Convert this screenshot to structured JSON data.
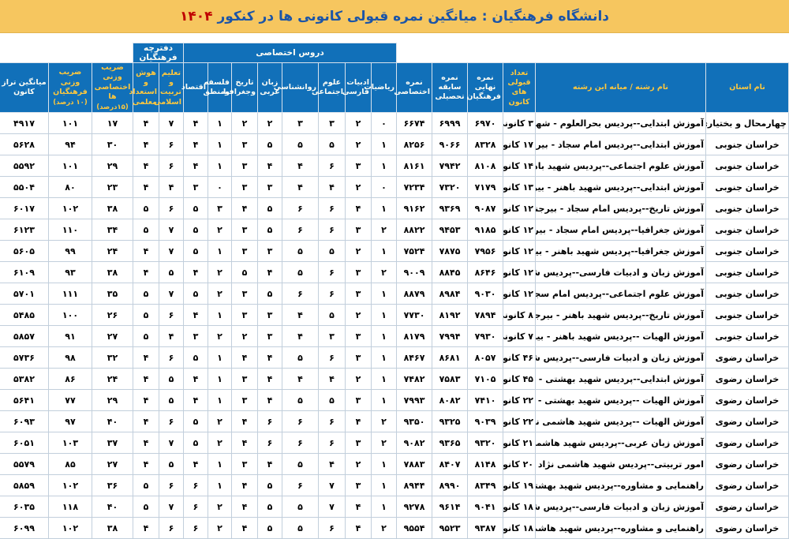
{
  "title": {
    "text": "دانشگاه فرهنگیان : میانگین نمره قبولی کانونی ها در کنکور",
    "year": "۱۴۰۴"
  },
  "colors": {
    "banner_yellow": "#f6c65f",
    "header_blue": "#1170b9",
    "accent_yellow": "#ffc83d",
    "title_blue": "#1b55a8",
    "year_red": "#c00000"
  },
  "header": {
    "groups": {
      "specialized_courses": "دروس اختصاصی",
      "farhangian_booklet": "دفترچه فرهنگیان"
    },
    "columns": {
      "province": "نام استان",
      "major": "نام رشته / میانه این رشته",
      "count": "تعداد قبولی های کانون",
      "final": "نمره نهایی فرهنگیان",
      "record": "نمره سابقه تحصیلی",
      "specialized": "نمره اختصاصی",
      "math": "ریاضیات",
      "literature": "ادبیات فارسی",
      "social": "علوم اجتماعی",
      "psychology": "روانشناسی",
      "arabic": "زبان عربی",
      "history": "تاریخ وجغرافیا",
      "philosophy": "فلسفه ومنطق",
      "economics": "اقتصاد",
      "education": "تعلیم و تربیت اسلامی",
      "aptitude": "هوش و استعداد معلمی",
      "coef_spec": "ضریب وزنی اختصاصی ها",
      "coef_spec_note": "(۱۵درصد)",
      "coef_farhangian": "ضریب وزنی فرهنگیان",
      "coef_farhangian_note": "(۱۰ درصد)",
      "taraz": "میانگین تراز کانون"
    }
  },
  "rows": [
    {
      "province": "چهارمحال و بختیاری",
      "major": "آموزش ابتدایی--پردیس بحرالعلوم - شهرکرد",
      "count": "۳ کانونی",
      "final": "۶۹۷۰",
      "record": "۶۹۹۹",
      "specialized": "۶۶۷۴",
      "math": "۰",
      "literature": "۲",
      "social": "۳",
      "psychology": "۳",
      "arabic": "۲",
      "history": "۲",
      "philosophy": "۱",
      "economics": "۴",
      "education": "۷",
      "aptitude": "۴",
      "coef_spec": "۱۷",
      "coef_farhangian": "۱۰۱",
      "taraz": "۴۹۱۷"
    },
    {
      "province": "خراسان جنوبی",
      "major": "آموزش ابتدایی--پردیس امام سجاد - بیرجند",
      "count": "۱۷ کانونی",
      "final": "۸۳۲۸",
      "record": "۹۰۶۶",
      "specialized": "۸۲۵۶",
      "math": "۱",
      "literature": "۲",
      "social": "۵",
      "psychology": "۵",
      "arabic": "۵",
      "history": "۳",
      "philosophy": "۱",
      "economics": "۴",
      "education": "۶",
      "aptitude": "۴",
      "coef_spec": "۳۰",
      "coef_farhangian": "۹۴",
      "taraz": "۵۶۲۸"
    },
    {
      "province": "خراسان جنوبی",
      "major": "آموزش علوم اجتماعی--پردیس شهید باهنر - بیرجند",
      "count": "۱۴ کانونی",
      "final": "۸۱۰۸",
      "record": "۷۹۴۲",
      "specialized": "۸۱۶۱",
      "math": "۱",
      "literature": "۳",
      "social": "۶",
      "psychology": "۴",
      "arabic": "۴",
      "history": "۳",
      "philosophy": "۱",
      "economics": "۴",
      "education": "۶",
      "aptitude": "۴",
      "coef_spec": "۲۹",
      "coef_farhangian": "۱۰۱",
      "taraz": "۵۵۹۲"
    },
    {
      "province": "خراسان جنوبی",
      "major": "آموزش ابتدایی--پردیس شهید باهنر - بیرجند",
      "count": "۱۳ کانونی",
      "final": "۷۱۷۹",
      "record": "۷۳۲۰",
      "specialized": "۷۲۳۴",
      "math": "۰",
      "literature": "۲",
      "social": "۴",
      "psychology": "۴",
      "arabic": "۳",
      "history": "۳",
      "philosophy": "۰",
      "economics": "۳",
      "education": "۴",
      "aptitude": "۴",
      "coef_spec": "۲۳",
      "coef_farhangian": "۸۰",
      "taraz": "۵۵۰۴"
    },
    {
      "province": "خراسان جنوبی",
      "major": "آموزش تاریخ--پردیس امام سجاد - بیرجند",
      "count": "۱۲ کانونی",
      "final": "۹۰۸۷",
      "record": "۹۳۶۹",
      "specialized": "۹۱۶۲",
      "math": "۱",
      "literature": "۴",
      "social": "۶",
      "psychology": "۶",
      "arabic": "۵",
      "history": "۴",
      "philosophy": "۳",
      "economics": "۵",
      "education": "۶",
      "aptitude": "۵",
      "coef_spec": "۳۸",
      "coef_farhangian": "۱۰۲",
      "taraz": "۶۰۱۷"
    },
    {
      "province": "خراسان جنوبی",
      "major": "آموزش جغرافیا--پردیس امام سجاد - بیرجند",
      "count": "۱۲ کانونی",
      "final": "۹۱۸۵",
      "record": "۹۴۵۳",
      "specialized": "۸۸۲۲",
      "math": "۲",
      "literature": "۳",
      "social": "۶",
      "psychology": "۶",
      "arabic": "۵",
      "history": "۳",
      "philosophy": "۲",
      "economics": "۵",
      "education": "۷",
      "aptitude": "۵",
      "coef_spec": "۳۴",
      "coef_farhangian": "۱۱۰",
      "taraz": "۶۱۲۳"
    },
    {
      "province": "خراسان جنوبی",
      "major": "آموزش جغرافیا--پردیس شهید باهنر - بیرجند",
      "count": "۱۲ کانونی",
      "final": "۷۹۵۶",
      "record": "۷۸۷۵",
      "specialized": "۷۵۲۴",
      "math": "۱",
      "literature": "۲",
      "social": "۵",
      "psychology": "۵",
      "arabic": "۳",
      "history": "۳",
      "philosophy": "۱",
      "economics": "۵",
      "education": "۷",
      "aptitude": "۴",
      "coef_spec": "۲۴",
      "coef_farhangian": "۹۹",
      "taraz": "۵۶۰۵"
    },
    {
      "province": "خراسان جنوبی",
      "major": "آموزش زبان و ادبیات فارسی--پردیس شهید باهنر - بیرجند",
      "count": "۱۲ کانونی",
      "final": "۸۶۴۶",
      "record": "۸۸۴۵",
      "specialized": "۹۰۰۹",
      "math": "۲",
      "literature": "۳",
      "social": "۶",
      "psychology": "۵",
      "arabic": "۴",
      "history": "۵",
      "philosophy": "۲",
      "economics": "۴",
      "education": "۵",
      "aptitude": "۴",
      "coef_spec": "۳۸",
      "coef_farhangian": "۹۳",
      "taraz": "۶۱۰۹"
    },
    {
      "province": "خراسان جنوبی",
      "major": "آموزش علوم اجتماعی--پردیس امام سجاد - بیرجند",
      "count": "۱۲ کانونی",
      "final": "۹۰۳۰",
      "record": "۸۹۸۴",
      "specialized": "۸۸۷۹",
      "math": "۱",
      "literature": "۳",
      "social": "۶",
      "psychology": "۶",
      "arabic": "۵",
      "history": "۳",
      "philosophy": "۲",
      "economics": "۵",
      "education": "۷",
      "aptitude": "۵",
      "coef_spec": "۳۵",
      "coef_farhangian": "۱۱۱",
      "taraz": "۵۷۰۱"
    },
    {
      "province": "خراسان جنوبی",
      "major": "آموزش تاریخ--پردیس شهید باهنر - بیرجند",
      "count": "۸ کانونی",
      "final": "۷۸۹۴",
      "record": "۸۱۹۲",
      "specialized": "۷۷۳۰",
      "math": "۱",
      "literature": "۲",
      "social": "۵",
      "psychology": "۴",
      "arabic": "۳",
      "history": "۳",
      "philosophy": "۱",
      "economics": "۴",
      "education": "۶",
      "aptitude": "۵",
      "coef_spec": "۲۶",
      "coef_farhangian": "۱۰۰",
      "taraz": "۵۴۸۵"
    },
    {
      "province": "خراسان جنوبی",
      "major": "آموزش الهیات --پردیس شهید باهنر - بیرجند",
      "count": "۷ کانونی",
      "final": "۷۹۳۰",
      "record": "۷۹۹۴",
      "specialized": "۸۱۷۹",
      "math": "۱",
      "literature": "۳",
      "social": "۳",
      "psychology": "۴",
      "arabic": "۳",
      "history": "۲",
      "philosophy": "۲",
      "economics": "۳",
      "education": "۴",
      "aptitude": "۵",
      "coef_spec": "۲۷",
      "coef_farhangian": "۹۱",
      "taraz": "۵۸۵۷"
    },
    {
      "province": "خراسان رضوی",
      "major": "آموزش زبان و ادبیات فارسی--پردیس شهید بهشتی - مشهد",
      "count": "۴۶ کانونی",
      "final": "۸۰۵۷",
      "record": "۸۶۸۱",
      "specialized": "۸۴۶۷",
      "math": "۱",
      "literature": "۳",
      "social": "۶",
      "psychology": "۵",
      "arabic": "۴",
      "history": "۴",
      "philosophy": "۱",
      "economics": "۵",
      "education": "۶",
      "aptitude": "۴",
      "coef_spec": "۳۲",
      "coef_farhangian": "۹۸",
      "taraz": "۵۷۳۶"
    },
    {
      "province": "خراسان رضوی",
      "major": "آموزش ابتدایی--پردیس شهید بهشتی - مشهد",
      "count": "۴۵ کانونی",
      "final": "۷۱۰۵",
      "record": "۷۵۸۳",
      "specialized": "۷۴۸۲",
      "math": "۱",
      "literature": "۲",
      "social": "۴",
      "psychology": "۴",
      "arabic": "۴",
      "history": "۳",
      "philosophy": "۱",
      "economics": "۴",
      "education": "۵",
      "aptitude": "۴",
      "coef_spec": "۲۴",
      "coef_farhangian": "۸۶",
      "taraz": "۵۳۸۲"
    },
    {
      "province": "خراسان رضوی",
      "major": "آموزش الهیات --پردیس شهید بهشتی - مشهد",
      "count": "۲۲ کانونی",
      "final": "۷۴۱۰",
      "record": "۸۰۸۲",
      "specialized": "۷۹۹۳",
      "math": "۱",
      "literature": "۳",
      "social": "۵",
      "psychology": "۵",
      "arabic": "۴",
      "history": "۳",
      "philosophy": "۱",
      "economics": "۴",
      "education": "۵",
      "aptitude": "۴",
      "coef_spec": "۲۹",
      "coef_farhangian": "۷۷",
      "taraz": "۵۶۴۱"
    },
    {
      "province": "خراسان رضوی",
      "major": "آموزش الهیات --پردیس شهید هاشمی نژاد - مشهد",
      "count": "۲۲ کانونی",
      "final": "۹۰۳۹",
      "record": "۹۳۲۵",
      "specialized": "۹۳۵۰",
      "math": "۲",
      "literature": "۴",
      "social": "۶",
      "psychology": "۶",
      "arabic": "۶",
      "history": "۴",
      "philosophy": "۲",
      "economics": "۵",
      "education": "۶",
      "aptitude": "۴",
      "coef_spec": "۴۰",
      "coef_farhangian": "۹۷",
      "taraz": "۶۰۹۳"
    },
    {
      "province": "خراسان رضوی",
      "major": "آموزش زبان عربی--پردیس شهید هاشمی نژاد - مشهد",
      "count": "۲۱ کانونی",
      "final": "۹۳۲۰",
      "record": "۹۳۶۵",
      "specialized": "۹۰۸۲",
      "math": "۲",
      "literature": "۳",
      "social": "۶",
      "psychology": "۶",
      "arabic": "۶",
      "history": "۴",
      "philosophy": "۲",
      "economics": "۵",
      "education": "۷",
      "aptitude": "۴",
      "coef_spec": "۳۷",
      "coef_farhangian": "۱۰۳",
      "taraz": "۶۰۵۱"
    },
    {
      "province": "خراسان رضوی",
      "major": "امور تربیتی--پردیس شهید هاشمی نژاد - مشهد",
      "count": "۲۰ کانونی",
      "final": "۸۱۴۸",
      "record": "۸۴۰۷",
      "specialized": "۷۸۸۳",
      "math": "۱",
      "literature": "۲",
      "social": "۴",
      "psychology": "۵",
      "arabic": "۴",
      "history": "۳",
      "philosophy": "۱",
      "economics": "۴",
      "education": "۵",
      "aptitude": "۴",
      "coef_spec": "۲۷",
      "coef_farhangian": "۸۵",
      "taraz": "۵۵۷۹"
    },
    {
      "province": "خراسان رضوی",
      "major": "راهنمایی و مشاوره--پردیس شهید بهشتی - مشهد",
      "count": "۱۹ کانونی",
      "final": "۸۳۴۹",
      "record": "۸۹۹۰",
      "specialized": "۸۹۴۴",
      "math": "۱",
      "literature": "۳",
      "social": "۷",
      "psychology": "۶",
      "arabic": "۵",
      "history": "۴",
      "philosophy": "۱",
      "economics": "۶",
      "education": "۶",
      "aptitude": "۵",
      "coef_spec": "۳۶",
      "coef_farhangian": "۱۰۲",
      "taraz": "۵۸۵۹"
    },
    {
      "province": "خراسان رضوی",
      "major": "آموزش زبان و ادبیات فارسی--پردیس شهید هاشمی نژاد - مشهد",
      "count": "۱۸ کانونی",
      "final": "۹۰۴۱",
      "record": "۹۶۱۴",
      "specialized": "۹۲۷۸",
      "math": "۱",
      "literature": "۴",
      "social": "۷",
      "psychology": "۵",
      "arabic": "۵",
      "history": "۴",
      "philosophy": "۲",
      "economics": "۶",
      "education": "۷",
      "aptitude": "۵",
      "coef_spec": "۴۰",
      "coef_farhangian": "۱۱۸",
      "taraz": "۶۰۳۵"
    },
    {
      "province": "خراسان رضوی",
      "major": "راهنمایی و مشاوره--پردیس شهید هاشمی نژاد - مشهد",
      "count": "۱۸ کانونی",
      "final": "۹۳۸۷",
      "record": "۹۵۲۳",
      "specialized": "۹۵۵۴",
      "math": "۲",
      "literature": "۴",
      "social": "۶",
      "psychology": "۵",
      "arabic": "۵",
      "history": "۴",
      "philosophy": "۲",
      "economics": "۶",
      "education": "۶",
      "aptitude": "۴",
      "coef_spec": "۳۸",
      "coef_farhangian": "۱۰۲",
      "taraz": "۶۰۹۹"
    }
  ]
}
